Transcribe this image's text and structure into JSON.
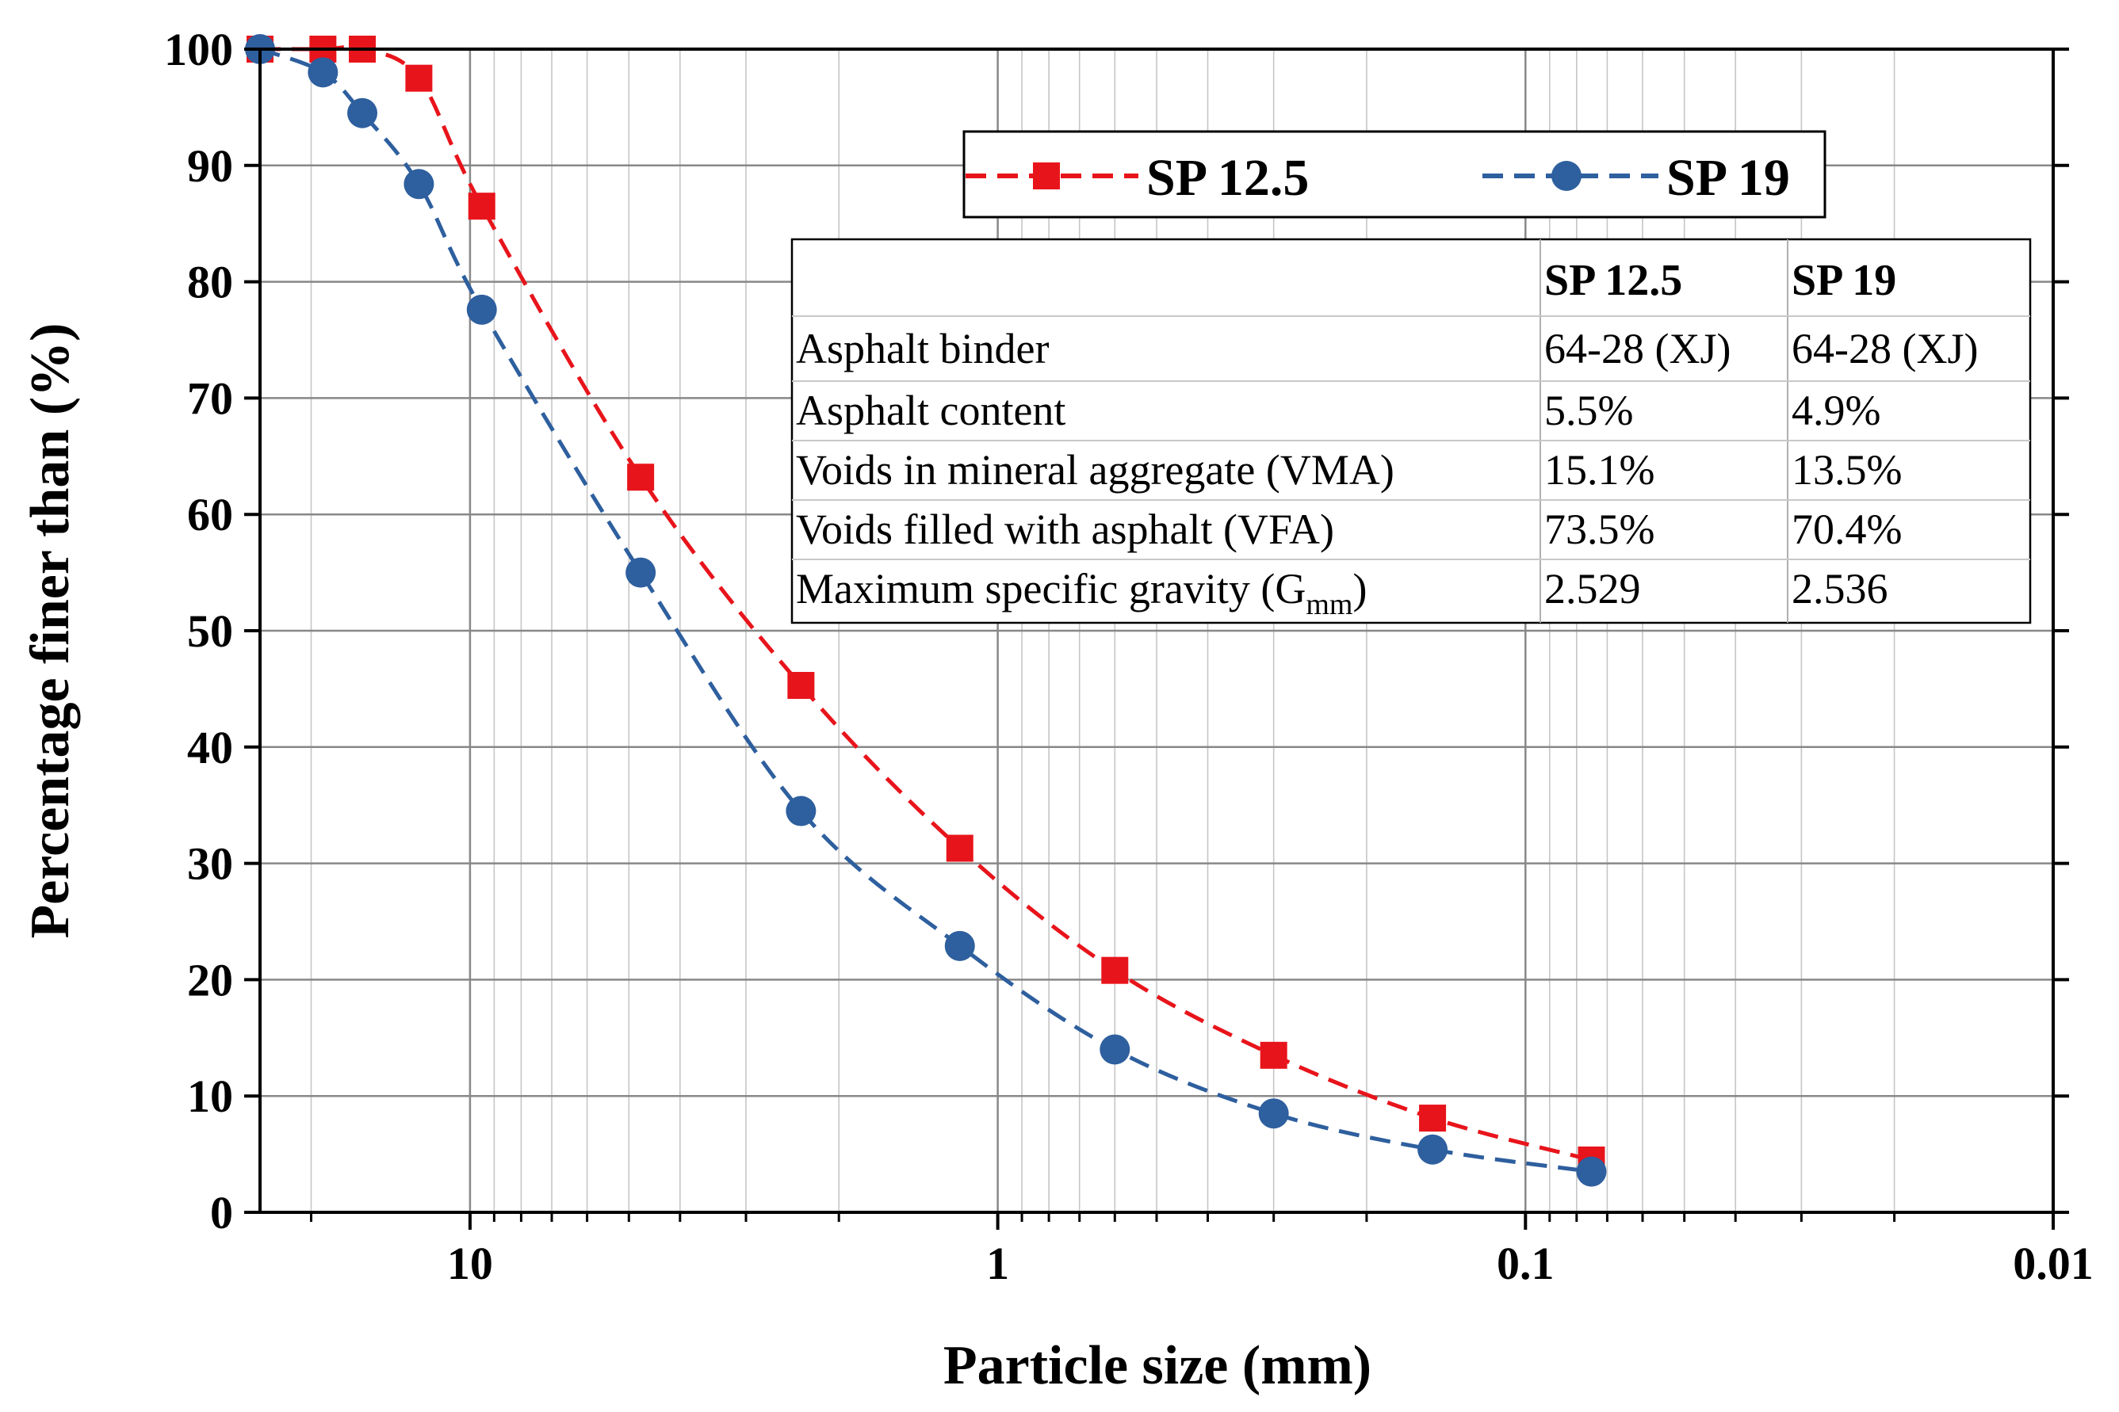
{
  "chart_data": {
    "type": "line",
    "xscale": "log",
    "x_reversed": true,
    "xlabel": "Particle size (mm)",
    "ylabel": "Percentage finer than (%)",
    "xlim": [
      25,
      0.01
    ],
    "ylim": [
      0,
      100
    ],
    "x_ticks": [
      {
        "value": 10,
        "label": "10"
      },
      {
        "value": 1,
        "label": "1"
      },
      {
        "value": 0.1,
        "label": "0.1"
      },
      {
        "value": 0.01,
        "label": "0.01"
      }
    ],
    "y_ticks": [
      {
        "value": 0,
        "label": "0"
      },
      {
        "value": 10,
        "label": "10"
      },
      {
        "value": 20,
        "label": "20"
      },
      {
        "value": 30,
        "label": "30"
      },
      {
        "value": 40,
        "label": "40"
      },
      {
        "value": 50,
        "label": "50"
      },
      {
        "value": 60,
        "label": "60"
      },
      {
        "value": 70,
        "label": "70"
      },
      {
        "value": 80,
        "label": "80"
      },
      {
        "value": 90,
        "label": "90"
      },
      {
        "value": 100,
        "label": "100"
      }
    ],
    "grid": true,
    "legend_position": "top-right",
    "series": [
      {
        "name": "SP 12.5",
        "color": "#e8141b",
        "marker": "square",
        "line_style": "dashed",
        "points": [
          {
            "x": 25,
            "y": 100
          },
          {
            "x": 19,
            "y": 100
          },
          {
            "x": 16,
            "y": 100
          },
          {
            "x": 12.5,
            "y": 97.5
          },
          {
            "x": 9.5,
            "y": 86.5
          },
          {
            "x": 4.75,
            "y": 63.2
          },
          {
            "x": 2.36,
            "y": 45.3
          },
          {
            "x": 1.18,
            "y": 31.3
          },
          {
            "x": 0.6,
            "y": 20.8
          },
          {
            "x": 0.3,
            "y": 13.5
          },
          {
            "x": 0.15,
            "y": 8.1
          },
          {
            "x": 0.075,
            "y": 4.5
          }
        ]
      },
      {
        "name": "SP 19",
        "color": "#2e5f9e",
        "marker": "circle",
        "line_style": "dashed",
        "points": [
          {
            "x": 25,
            "y": 100
          },
          {
            "x": 19,
            "y": 98
          },
          {
            "x": 16,
            "y": 94.5
          },
          {
            "x": 12.5,
            "y": 88.4
          },
          {
            "x": 9.5,
            "y": 77.6
          },
          {
            "x": 4.75,
            "y": 55
          },
          {
            "x": 2.36,
            "y": 34.5
          },
          {
            "x": 1.18,
            "y": 22.9
          },
          {
            "x": 0.6,
            "y": 14
          },
          {
            "x": 0.3,
            "y": 8.5
          },
          {
            "x": 0.15,
            "y": 5.4
          },
          {
            "x": 0.075,
            "y": 3.5
          }
        ]
      }
    ]
  },
  "table": {
    "headers": [
      "",
      "SP 12.5",
      "SP 19"
    ],
    "rows": [
      {
        "label": "Asphalt binder",
        "sp125": "64-28 (XJ)",
        "sp19": "64-28 (XJ)"
      },
      {
        "label": "Asphalt content",
        "sp125": "5.5%",
        "sp19": "4.9%"
      },
      {
        "label": "Voids in mineral aggregate (VMA)",
        "sp125": "15.1%",
        "sp19": "13.5%"
      },
      {
        "label": "Voids filled with asphalt (VFA)",
        "sp125": "73.5%",
        "sp19": "70.4%"
      },
      {
        "label": "Maximum specific gravity (G",
        "sub": "mm",
        "suffix": ")",
        "sp125": "2.529",
        "sp19": "2.536"
      }
    ]
  }
}
